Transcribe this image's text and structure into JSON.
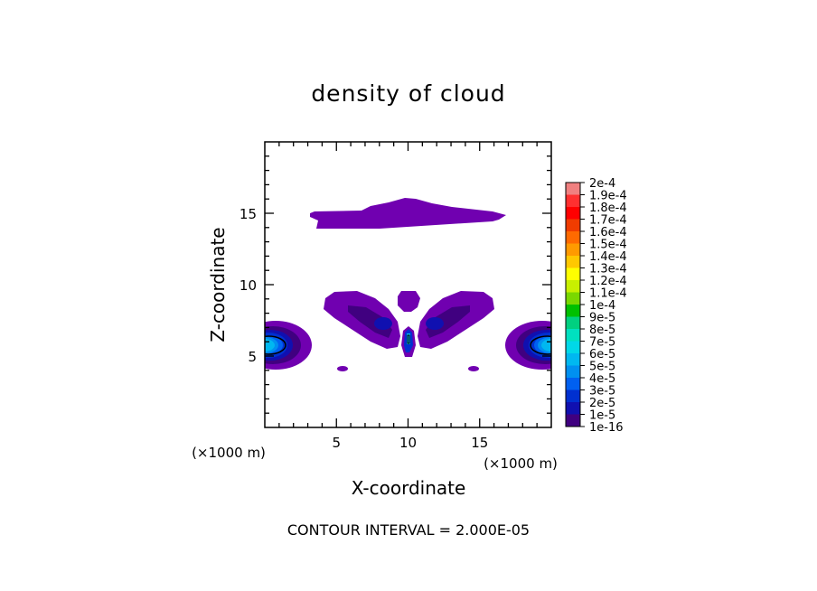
{
  "chart_data": {
    "type": "heatmap",
    "title": "density of cloud",
    "xlabel": "X-coordinate",
    "ylabel": "Z-coordinate",
    "x_unit": "(×1000 m)",
    "y_unit": "(×1000 m)",
    "xlim": [
      0,
      20
    ],
    "ylim": [
      0,
      20
    ],
    "xticks": [
      5,
      10,
      15
    ],
    "yticks": [
      5,
      10,
      15
    ],
    "footer": "CONTOUR INTERVAL = 2.000E-05",
    "colorbar": {
      "labels": [
        "2e-4",
        "1.9e-4",
        "1.8e-4",
        "1.7e-4",
        "1.6e-4",
        "1.5e-4",
        "1.4e-4",
        "1.3e-4",
        "1.2e-4",
        "1.1e-4",
        "1e-4",
        "9e-5",
        "8e-5",
        "7e-5",
        "6e-5",
        "5e-5",
        "4e-5",
        "3e-5",
        "2e-5",
        "1e-5",
        "1e-16"
      ],
      "colors": [
        "#f08080",
        "#ff3030",
        "#ff0000",
        "#f03c00",
        "#ff6a00",
        "#ff9a00",
        "#ffc800",
        "#ffff00",
        "#c8f000",
        "#7ad800",
        "#00c000",
        "#00d080",
        "#00e0c0",
        "#00d8e8",
        "#00b8f0",
        "#0090f0",
        "#0060f0",
        "#0030d0",
        "#1010b0",
        "#400080",
        "#7000b0"
      ]
    },
    "regions": [
      {
        "name": "upper cloud band",
        "peak": 1e-16
      },
      {
        "name": "left boundary core",
        "peak": 6e-05
      },
      {
        "name": "right boundary core",
        "peak": 6e-05
      },
      {
        "name": "left mid lobe",
        "peak": 2e-05
      },
      {
        "name": "right mid lobe",
        "peak": 2e-05
      },
      {
        "name": "central column",
        "peak": 3e-05
      }
    ]
  }
}
